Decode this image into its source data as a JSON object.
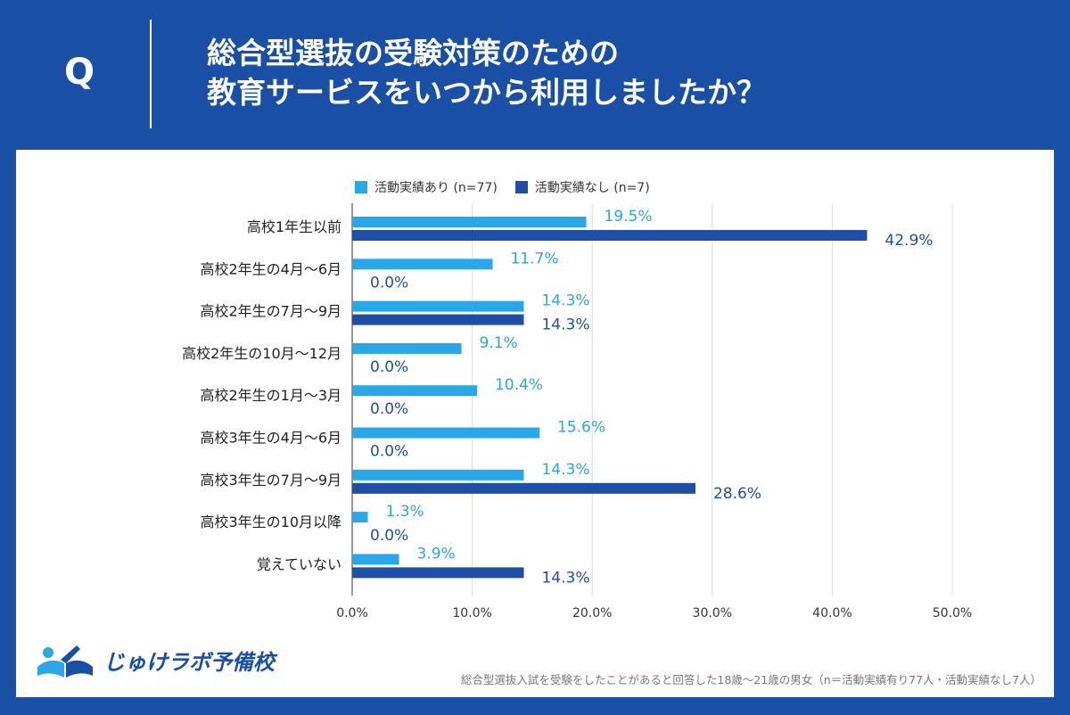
{
  "header": {
    "q_mark": "Q",
    "title_line1": "総合型選抜の受験対策のための",
    "title_line2": "教育サービスをいつから利用しましたか？"
  },
  "colors": {
    "background": "#1a4fa6",
    "series_light": "#29a7e6",
    "series_dark": "#1f4ea6",
    "grid": "#dcdce6"
  },
  "chart_data": {
    "type": "bar",
    "orientation": "horizontal",
    "categories": [
      "高校1年生以前",
      "高校2年生の4月〜6月",
      "高校2年生の7月〜9月",
      "高校2年生の10月〜12月",
      "高校2年生の1月〜3月",
      "高校3年生の4月〜6月",
      "高校3年生の7月〜9月",
      "高校3年生の10月以降",
      "覚えていない"
    ],
    "series": [
      {
        "name": "活動実績あり (n=77)",
        "values": [
          19.5,
          11.7,
          14.3,
          9.1,
          10.4,
          15.6,
          14.3,
          1.3,
          3.9
        ],
        "labels": [
          "19.5%",
          "11.7%",
          "14.3%",
          "9.1%",
          "10.4%",
          "15.6%",
          "14.3%",
          "1.3%",
          "3.9%"
        ]
      },
      {
        "name": "活動実績なし (n=7)",
        "values": [
          42.9,
          0.0,
          14.3,
          0.0,
          0.0,
          0.0,
          28.6,
          0.0,
          14.3
        ],
        "labels": [
          "42.9%",
          "0.0%",
          "14.3%",
          "0.0%",
          "0.0%",
          "0.0%",
          "28.6%",
          "0.0%",
          "14.3%"
        ]
      }
    ],
    "xlim": [
      0,
      50
    ],
    "ticks": [
      "0.0%",
      "10.0%",
      "20.0%",
      "30.0%",
      "40.0%",
      "50.0%"
    ],
    "tick_values": [
      0,
      10,
      20,
      30,
      40,
      50
    ],
    "legend_position": "top",
    "grid": true
  },
  "footer": {
    "logo_text": "じゅけラボ予備校",
    "note": "総合型選抜入試を受験をしたことがあると回答した18歳〜21歳の男女（n＝活動実績有り77人・活動実績なし7人）"
  }
}
